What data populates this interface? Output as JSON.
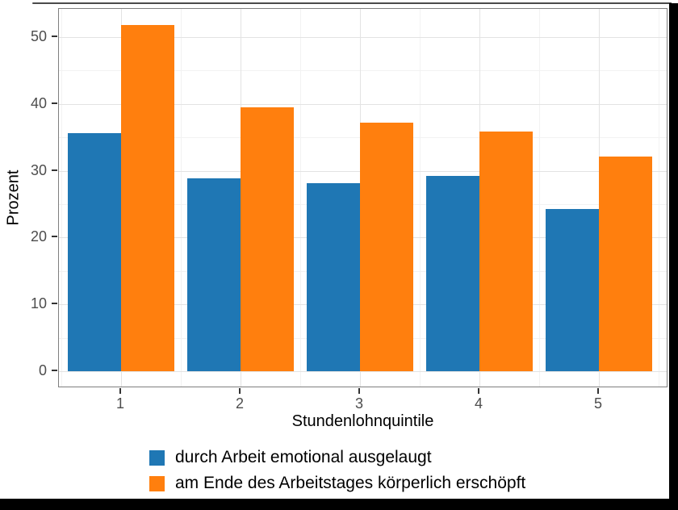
{
  "chart_data": {
    "type": "bar",
    "bar_mode": "grouped",
    "title": "",
    "categories": [
      "1",
      "2",
      "3",
      "4",
      "5"
    ],
    "series": [
      {
        "name": "durch Arbeit emotional ausgelaugt",
        "color": "#1f77b4",
        "values": [
          35.6,
          28.9,
          28.1,
          29.2,
          24.3
        ]
      },
      {
        "name": "am Ende des Arbeitstages körperlich erschöpft",
        "color": "#ff7f0e",
        "values": [
          51.8,
          39.5,
          37.2,
          35.9,
          32.1
        ]
      }
    ],
    "xlabel": "Stundenlohnquintile",
    "ylabel": "Prozent",
    "ylim": [
      -2.6,
      54.4
    ],
    "yticks": [
      0,
      10,
      20,
      30,
      40,
      50
    ],
    "yticks_minor": [
      5,
      15,
      25,
      35,
      45
    ],
    "grid": "horizontal and vertical, major + minor, light gray on white panel",
    "legend_position": "bottom-left"
  },
  "frame": {
    "border_color": "#000000",
    "top_line_color": "#4a4a4a"
  }
}
